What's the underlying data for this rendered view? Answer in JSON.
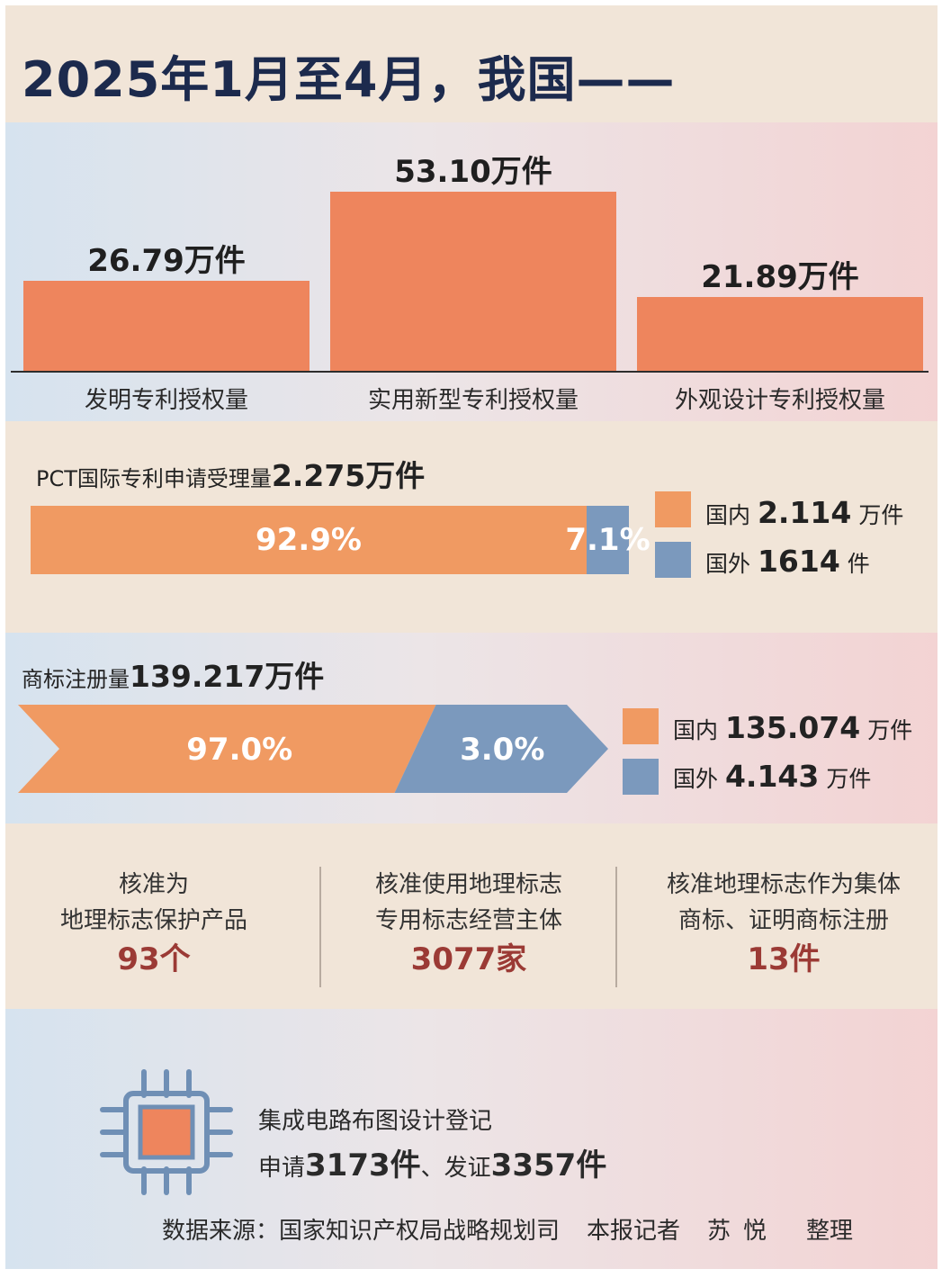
{
  "title": "2025年1月至4月，我国——",
  "chart_data": {
    "type": "bar",
    "categories": [
      "发明专利授权量",
      "实用新型专利授权量",
      "外观设计专利授权量"
    ],
    "values": [
      26.79,
      53.1,
      21.89
    ],
    "value_labels": [
      "26.79万件",
      "53.10万件",
      "21.89万件"
    ],
    "unit": "万件"
  },
  "pct": {
    "title": "PCT国际专利申请受理量",
    "total": "2.275万件",
    "segments": [
      {
        "label": "92.9%",
        "share": 0.929,
        "color": "#f09a62"
      },
      {
        "label": "7.1%",
        "share": 0.071,
        "color": "#7b99bd"
      }
    ],
    "legend": [
      {
        "name": "国内",
        "value": "2.114",
        "unit": "万件",
        "color": "#f09a62"
      },
      {
        "name": "国外",
        "value": "1614",
        "unit": "件",
        "color": "#7b99bd"
      }
    ]
  },
  "trademark": {
    "title": "商标注册量",
    "total": "139.217万件",
    "segments": [
      {
        "label": "97.0%",
        "share": 0.97,
        "color": "#f09a62"
      },
      {
        "label": "3.0%",
        "share": 0.03,
        "color": "#7b99bd"
      }
    ],
    "legend": [
      {
        "name": "国内",
        "value": "135.074",
        "unit": "万件",
        "color": "#f09a62"
      },
      {
        "name": "国外",
        "value": "4.143",
        "unit": "万件",
        "color": "#7b99bd"
      }
    ]
  },
  "geo": [
    {
      "line1": "核准为",
      "line2": "地理标志保护产品",
      "value": "93个"
    },
    {
      "line1": "核准使用地理标志",
      "line2": "专用标志经营主体",
      "value": "3077家"
    },
    {
      "line1": "核准地理标志作为集体",
      "line2": "商标、证明商标注册",
      "value": "13件"
    }
  ],
  "ic": {
    "icon": "chip-icon",
    "label": "集成电路布图设计登记",
    "apply_prefix": "申请",
    "apply_value": "3173",
    "apply_unit": "件",
    "sep": "、发证",
    "issue_value": "3357",
    "issue_unit": "件"
  },
  "footer": {
    "source": "数据来源：国家知识产权局战略规划司",
    "reporter": "本报记者",
    "author": "苏悦",
    "action": "整理"
  }
}
